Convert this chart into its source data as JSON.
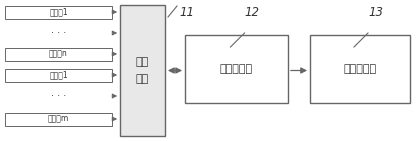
{
  "bg_color": "#ffffff",
  "line_color": "#666666",
  "box_fill": "#e8e8e8",
  "box_fill_right": "#ffffff",
  "text_color": "#333333",
  "left_labels": [
    "电压蘱1",
    "···",
    "电压蘱n",
    "电流蘱1",
    "···",
    "电流蘱m"
  ],
  "box1_text": "采集\n单元",
  "box2_text": "采集处理器",
  "box3_text": "数据存储器",
  "label1": "11",
  "label2": "12",
  "label3": "13",
  "figsize": [
    4.17,
    1.41
  ],
  "dpi": 100
}
